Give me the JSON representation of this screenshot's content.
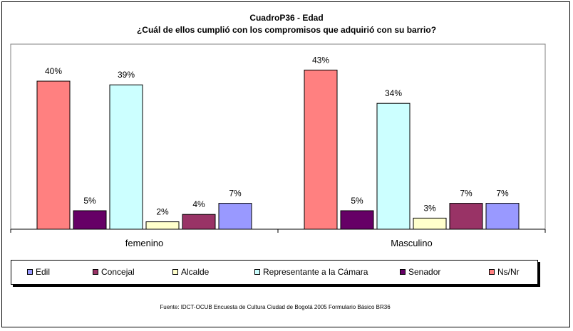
{
  "chart_data": {
    "type": "bar",
    "title": "CuadroP36 - Edad",
    "subtitle": "¿Cuál de ellos cumplió con los compromisos que adquirió con su barrio?",
    "categories": [
      "femenino",
      "Masculino"
    ],
    "series": [
      {
        "name": "Ns/Nr",
        "color": "#FF8080",
        "values": [
          40,
          43
        ]
      },
      {
        "name": "Senador",
        "color": "#660066",
        "values": [
          5,
          5
        ]
      },
      {
        "name": "Representante a la Cámara",
        "color": "#CCFFFF",
        "values": [
          39,
          34
        ]
      },
      {
        "name": "Alcalde",
        "color": "#FFFFCC",
        "values": [
          2,
          3
        ]
      },
      {
        "name": "Concejal",
        "color": "#993366",
        "values": [
          4,
          7
        ]
      },
      {
        "name": "Edil",
        "color": "#9999FF",
        "values": [
          7,
          7
        ]
      }
    ],
    "legend_order": [
      "Edil",
      "Concejal",
      "Alcalde",
      "Representante a la Cámara",
      "Senador",
      "Ns/Nr"
    ],
    "value_suffix": "%",
    "ylim": [
      0,
      50
    ],
    "grid": false,
    "legend_position": "bottom"
  },
  "source": "Fuente: IDCT-OCUB Encuesta de Cultura Ciudad de Bogotá 2005 Formulario Básico BR36"
}
